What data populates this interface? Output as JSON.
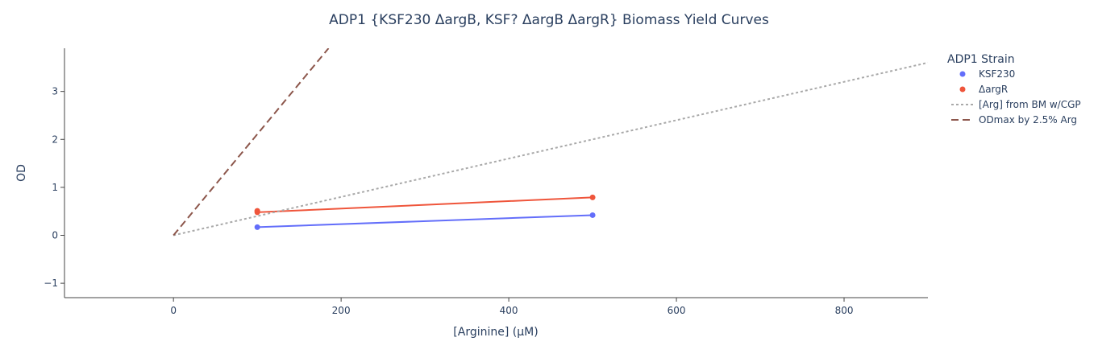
{
  "chart_data": {
    "type": "line",
    "title": "ADP1 {KSF230 ΔargB, KSF? ΔargB ΔargR} Biomass Yield Curves",
    "xlabel": "[Arginine] (μM)",
    "ylabel": "OD",
    "xlim": [
      -130,
      900
    ],
    "ylim": [
      -1.3,
      3.9
    ],
    "x_ticks": [
      0,
      200,
      400,
      600,
      800
    ],
    "y_ticks": [
      -1,
      0,
      1,
      2,
      3
    ],
    "x_tick_labels": [
      "0",
      "200",
      "400",
      "600",
      "800"
    ],
    "y_tick_labels": [
      "−1",
      "0",
      "1",
      "2",
      "3"
    ],
    "legend_title": "ADP1 Strain",
    "legend_position": "right",
    "series": [
      {
        "name": "KSF230",
        "color": "#636efa",
        "mode": "lines+markers",
        "dash": "solid",
        "x": [
          100,
          500
        ],
        "y": [
          0.17,
          0.42
        ]
      },
      {
        "name": "ΔargR",
        "color": "#ef553b",
        "mode": "lines+markers",
        "dash": "solid",
        "x": [
          100,
          100,
          500
        ],
        "y": [
          0.51,
          0.48,
          0.79
        ]
      },
      {
        "name": "[Arg] from BM w/CGP",
        "color": "#a9a9a9",
        "mode": "lines",
        "dash": "dot",
        "x": [
          0,
          900
        ],
        "y": [
          0,
          3.6
        ]
      },
      {
        "name": "ODmax by 2.5% Arg",
        "color": "#8c564b",
        "mode": "lines",
        "dash": "dash",
        "x": [
          0,
          185
        ],
        "y": [
          0,
          3.9
        ]
      }
    ]
  }
}
